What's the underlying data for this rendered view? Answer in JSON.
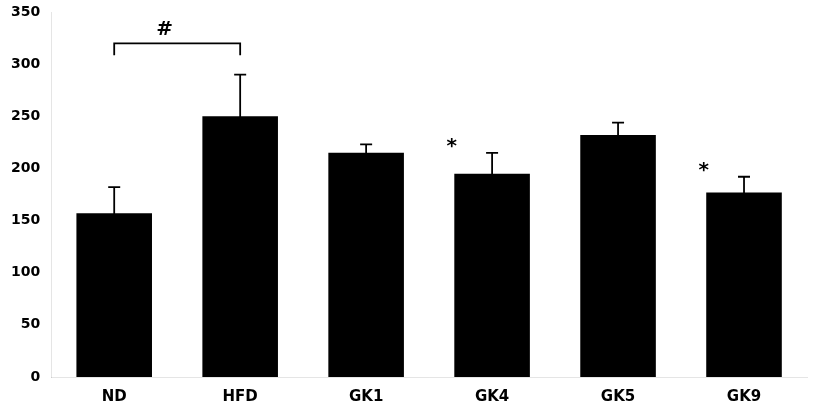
{
  "chart_data": {
    "type": "bar",
    "categories": [
      "ND",
      "HFD",
      "GK1",
      "GK4",
      "GK5",
      "GK9"
    ],
    "values": [
      157,
      250,
      215,
      195,
      232,
      177
    ],
    "errors": [
      25,
      40,
      8,
      20,
      12,
      15
    ],
    "color": "#000000",
    "ylim": [
      0,
      350
    ],
    "yticks": [
      0,
      50,
      100,
      150,
      200,
      250,
      300,
      350
    ],
    "grid": false,
    "annotations": [
      {
        "text": "*",
        "category": "GK4"
      },
      {
        "text": "*",
        "category": "GK9"
      }
    ],
    "bracket": {
      "text": "#",
      "from": "ND",
      "to": "HFD",
      "y": 320
    }
  }
}
